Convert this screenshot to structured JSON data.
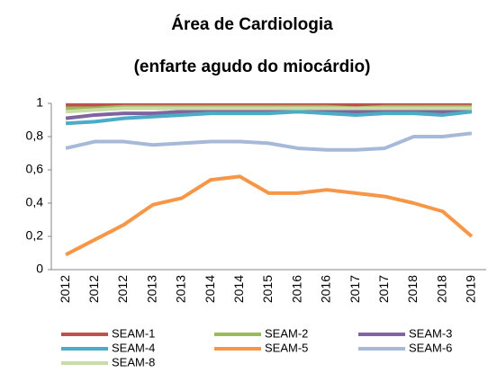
{
  "chart_data": {
    "type": "line",
    "title": "Área de Cardiologia",
    "subtitle": "(enfarte agudo do miocárdio)",
    "categories": [
      "2012",
      "2012",
      "2012",
      "2013",
      "2013",
      "2014",
      "2014",
      "2015",
      "2016",
      "2016",
      "2017",
      "2017",
      "2018",
      "2018",
      "2019"
    ],
    "series": [
      {
        "name": "SEAM-1",
        "color": "#c0504d",
        "values": [
          0.99,
          0.99,
          0.99,
          0.99,
          0.99,
          0.99,
          0.99,
          0.99,
          0.99,
          0.99,
          0.99,
          0.99,
          0.99,
          0.99,
          0.99
        ]
      },
      {
        "name": "SEAM-2",
        "color": "#9bbb59",
        "values": [
          0.97,
          0.97,
          0.98,
          0.98,
          0.98,
          0.98,
          0.98,
          0.98,
          0.98,
          0.98,
          0.97,
          0.98,
          0.98,
          0.98,
          0.98
        ]
      },
      {
        "name": "SEAM-3",
        "color": "#8064a2",
        "values": [
          0.91,
          0.93,
          0.94,
          0.94,
          0.95,
          0.95,
          0.95,
          0.95,
          0.95,
          0.95,
          0.95,
          0.95,
          0.95,
          0.95,
          0.96
        ]
      },
      {
        "name": "SEAM-4",
        "color": "#4bacc6",
        "values": [
          0.88,
          0.89,
          0.91,
          0.92,
          0.93,
          0.94,
          0.94,
          0.94,
          0.95,
          0.94,
          0.93,
          0.94,
          0.94,
          0.93,
          0.95
        ]
      },
      {
        "name": "SEAM-5",
        "color": "#f79646",
        "values": [
          0.09,
          0.18,
          0.27,
          0.39,
          0.43,
          0.54,
          0.56,
          0.46,
          0.46,
          0.48,
          0.46,
          0.44,
          0.4,
          0.35,
          0.2
        ]
      },
      {
        "name": "SEAM-6",
        "color": "#a7b9d9",
        "values": [
          0.73,
          0.77,
          0.77,
          0.75,
          0.76,
          0.77,
          0.77,
          0.76,
          0.73,
          0.72,
          0.72,
          0.73,
          0.8,
          0.8,
          0.82
        ]
      },
      {
        "name": "SEAM-8",
        "color": "#c9dba6",
        "values": [
          0.95,
          0.96,
          0.97,
          0.97,
          0.97,
          0.97,
          0.97,
          0.97,
          0.97,
          0.97,
          0.97,
          0.97,
          0.97,
          0.97,
          0.97
        ]
      }
    ],
    "ylim": [
      0,
      1
    ],
    "yticks": [
      0,
      {
        "value": 0.2,
        "label": "0,2"
      },
      {
        "value": 0.4,
        "label": "0,4"
      },
      {
        "value": 0.6,
        "label": "0,6"
      },
      {
        "value": 0.8,
        "label": "0,8"
      },
      1
    ]
  }
}
